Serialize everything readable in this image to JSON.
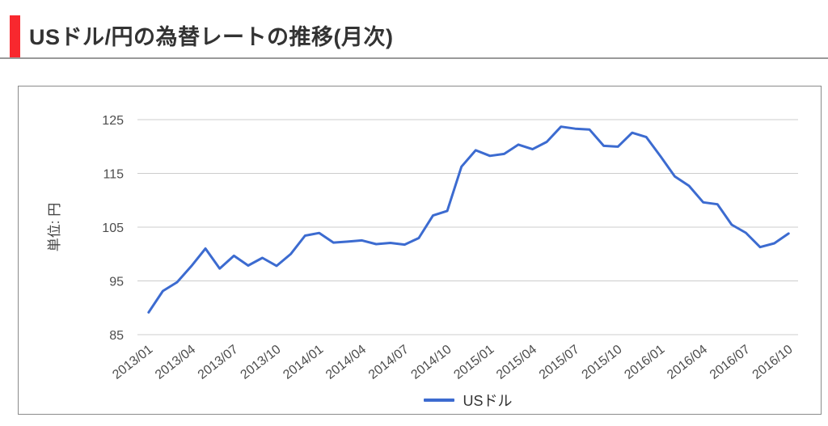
{
  "header": {
    "title": "USドル/円の為替レートの推移(月次)",
    "accent_color": "#f8282e",
    "rule_color": "#9a9a9a"
  },
  "chart_data": {
    "type": "line",
    "title": "USドル/円の為替レートの推移(月次)",
    "ylabel": "単位: 円",
    "xlabel": "",
    "ylim": [
      85,
      125
    ],
    "y_ticks": [
      85,
      95,
      105,
      115,
      125
    ],
    "x_tick_step": 3,
    "grid": "horizontal-only",
    "legend_position": "bottom-center",
    "categories": [
      "2013/01",
      "2013/02",
      "2013/03",
      "2013/04",
      "2013/05",
      "2013/06",
      "2013/07",
      "2013/08",
      "2013/09",
      "2013/10",
      "2013/11",
      "2013/12",
      "2014/01",
      "2014/02",
      "2014/03",
      "2014/04",
      "2014/05",
      "2014/06",
      "2014/07",
      "2014/08",
      "2014/09",
      "2014/10",
      "2014/11",
      "2014/12",
      "2015/01",
      "2015/02",
      "2015/03",
      "2015/04",
      "2015/05",
      "2015/06",
      "2015/07",
      "2015/08",
      "2015/09",
      "2015/10",
      "2015/11",
      "2015/12",
      "2016/01",
      "2016/02",
      "2016/03",
      "2016/04",
      "2016/05",
      "2016/06",
      "2016/07",
      "2016/08",
      "2016/09",
      "2016/10"
    ],
    "series": [
      {
        "name": "USドル",
        "color": "#3c6bd0",
        "values": [
          89.15,
          93.12,
          94.76,
          97.74,
          101.01,
          97.3,
          99.68,
          97.86,
          99.29,
          97.8,
          100.03,
          103.42,
          103.91,
          102.13,
          102.31,
          102.54,
          101.84,
          102.07,
          101.75,
          102.97,
          107.16,
          108.03,
          116.25,
          119.3,
          118.26,
          118.62,
          120.36,
          119.5,
          120.87,
          123.69,
          123.32,
          123.17,
          120.13,
          119.97,
          122.56,
          121.75,
          118.18,
          114.45,
          112.68,
          109.61,
          109.25,
          105.45,
          103.95,
          101.28,
          101.99,
          103.81
        ]
      }
    ]
  },
  "colors": {
    "grid": "#cccccc",
    "tick_label": "#4d4d4d",
    "axis_title": "#444444",
    "card_border": "#8a8a8a"
  }
}
